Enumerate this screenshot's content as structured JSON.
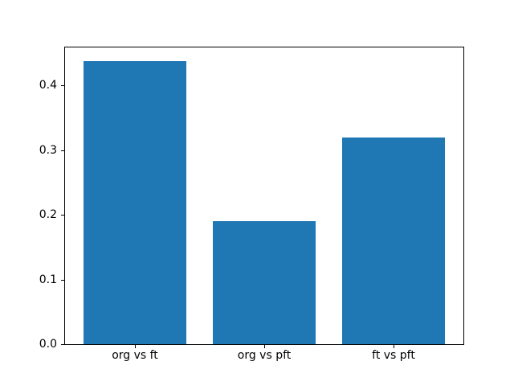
{
  "chart_data": {
    "type": "bar",
    "categories": [
      "org vs ft",
      "org vs pft",
      "ft vs pft"
    ],
    "values": [
      0.438,
      0.19,
      0.32
    ],
    "title": "",
    "xlabel": "",
    "ylabel": "",
    "ylim": [
      0,
      0.459
    ],
    "xlim": [
      -0.54,
      2.54
    ],
    "yticks": [
      0.0,
      0.1,
      0.2,
      0.3,
      0.4
    ],
    "ytick_labels": [
      "0.0",
      "0.1",
      "0.2",
      "0.3",
      "0.4"
    ],
    "bar_width": 0.8,
    "bar_color": "#1f77b4",
    "background_color": "#ffffff",
    "grid": false,
    "legend": null
  }
}
